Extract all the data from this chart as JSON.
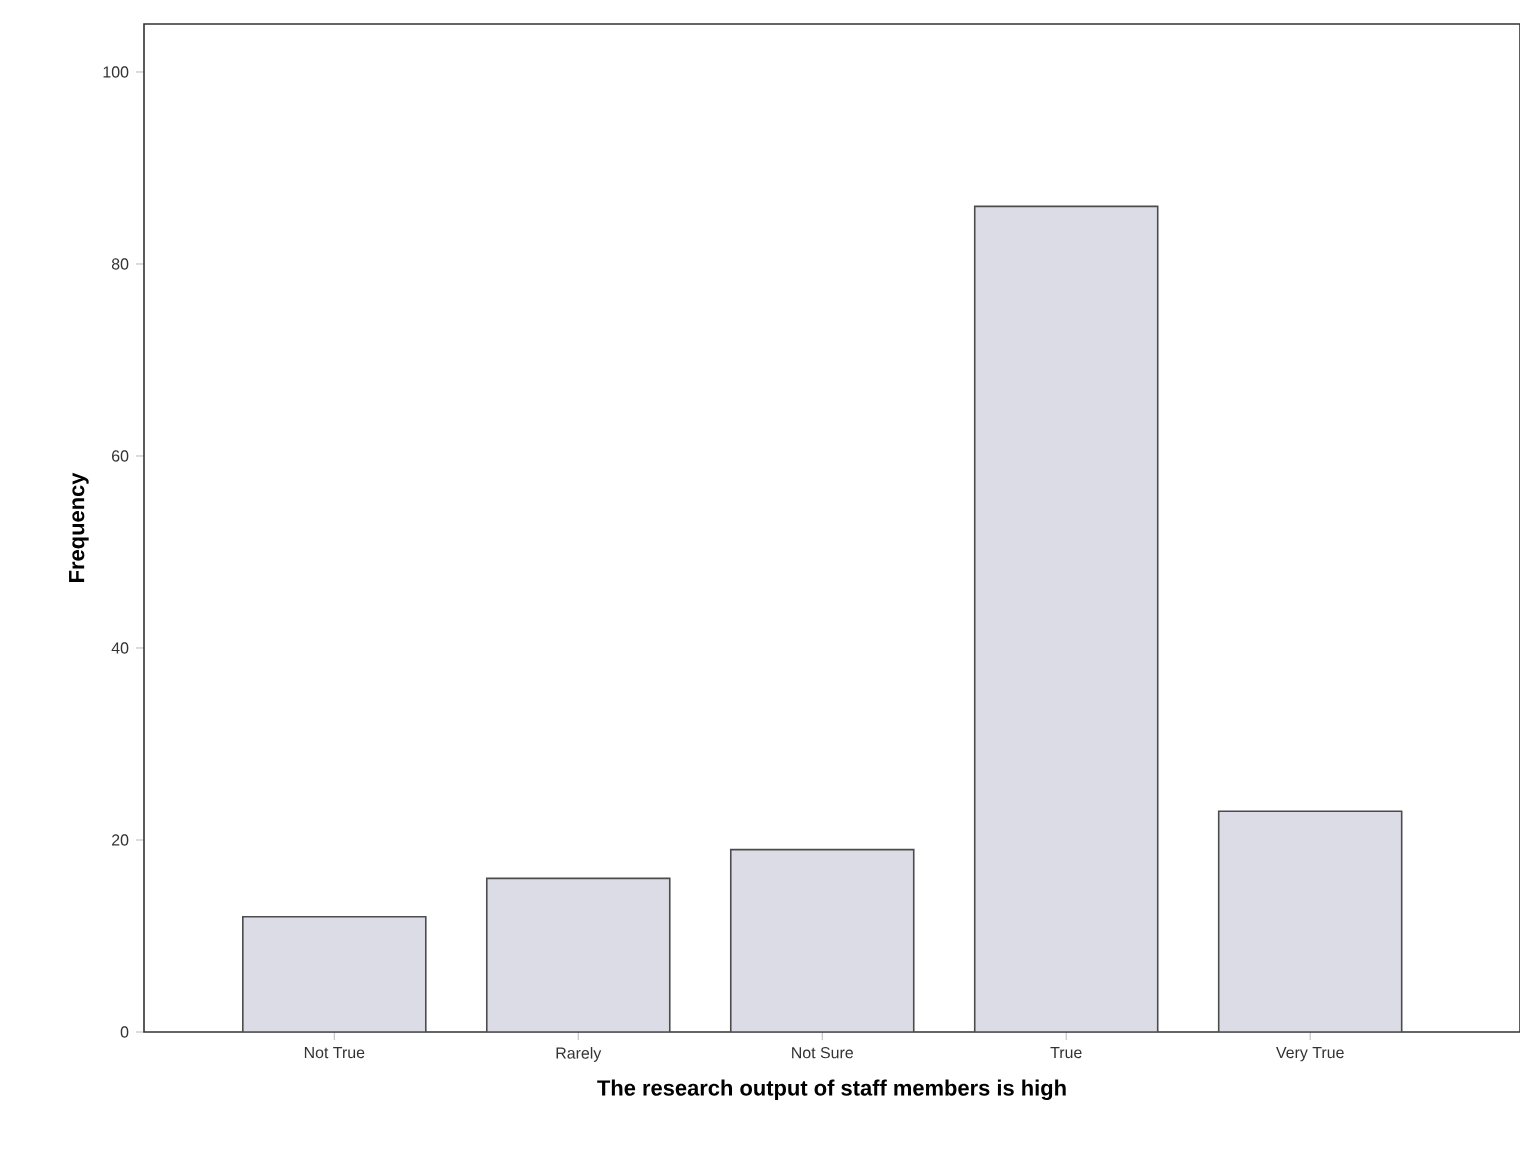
{
  "chart_data": {
    "type": "bar",
    "xlabel": "The research output of staff members is high",
    "ylabel": "Frequency",
    "categories": [
      "Not True",
      "Rarely",
      "Not Sure",
      "True",
      "Very True"
    ],
    "values": [
      12,
      16,
      19,
      86,
      23
    ],
    "color": "#dcdce6",
    "ylim": [
      0,
      105
    ],
    "yticks": [
      0,
      20,
      40,
      60,
      80,
      100
    ],
    "grid": false
  }
}
